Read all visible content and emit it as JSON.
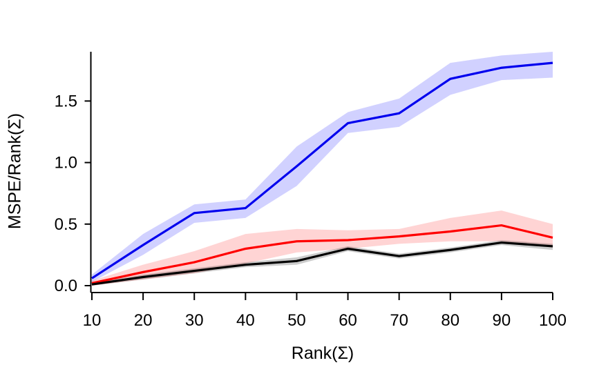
{
  "chart_data": {
    "type": "line",
    "title": "",
    "xlabel": "Rank(Σ)",
    "ylabel": "MSPE/Rank(Σ)",
    "x": [
      10,
      20,
      30,
      40,
      50,
      60,
      70,
      80,
      90,
      100
    ],
    "xtick_labels": [
      "10",
      "20",
      "30",
      "40",
      "50",
      "60",
      "70",
      "80",
      "90",
      "100"
    ],
    "ytick_values": [
      0.0,
      0.5,
      1.0,
      1.5
    ],
    "ytick_labels": [
      "0.0",
      "0.5",
      "1.0",
      "1.5"
    ],
    "xlim": [
      10,
      100
    ],
    "ylim": [
      0,
      1.9
    ],
    "grid": false,
    "legend": "none",
    "background_color": "#ffffff",
    "axis_color": "#000000",
    "series": [
      {
        "name": "series-blue",
        "color": "#0000ee",
        "band_color": "rgba(0,0,255,0.18)",
        "values": [
          0.06,
          0.33,
          0.59,
          0.63,
          0.97,
          1.32,
          1.4,
          1.68,
          1.77,
          1.81
        ],
        "band_lo": [
          0.03,
          0.25,
          0.51,
          0.55,
          0.81,
          1.24,
          1.29,
          1.55,
          1.67,
          1.69
        ],
        "band_hi": [
          0.09,
          0.42,
          0.66,
          0.7,
          1.13,
          1.41,
          1.52,
          1.81,
          1.87,
          1.9
        ]
      },
      {
        "name": "series-red",
        "color": "#ff0000",
        "band_color": "rgba(255,0,0,0.17)",
        "values": [
          0.02,
          0.11,
          0.19,
          0.3,
          0.36,
          0.37,
          0.4,
          0.44,
          0.49,
          0.39
        ],
        "band_lo": [
          0.0,
          0.05,
          0.1,
          0.18,
          0.27,
          0.3,
          0.34,
          0.36,
          0.36,
          0.31
        ],
        "band_hi": [
          0.04,
          0.17,
          0.28,
          0.42,
          0.46,
          0.45,
          0.46,
          0.55,
          0.61,
          0.5
        ]
      },
      {
        "name": "series-black",
        "color": "#000000",
        "band_color": "rgba(0,0,0,0.20)",
        "values": [
          0.01,
          0.07,
          0.12,
          0.17,
          0.2,
          0.3,
          0.24,
          0.29,
          0.35,
          0.32
        ],
        "band_lo": [
          0.0,
          0.05,
          0.1,
          0.15,
          0.17,
          0.28,
          0.22,
          0.27,
          0.33,
          0.29
        ],
        "band_hi": [
          0.02,
          0.09,
          0.14,
          0.19,
          0.23,
          0.32,
          0.26,
          0.31,
          0.37,
          0.34
        ]
      }
    ]
  }
}
